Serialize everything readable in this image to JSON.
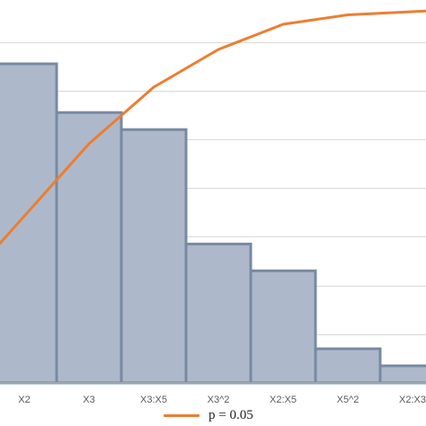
{
  "chart_data": {
    "type": "bar",
    "categories": [
      "X2",
      "X3",
      "X3:X5",
      "X3^2",
      "X2:X5",
      "X5^2",
      "X2:X3"
    ],
    "series": [
      {
        "name": "",
        "kind": "bar",
        "values": [
          0.131,
          0.111,
          0.104,
          0.057,
          0.046,
          0.014,
          0.007
        ]
      },
      {
        "name": "p = 0.05",
        "kind": "line",
        "values": [
          0.53,
          0.76,
          0.94,
          1.06,
          1.14,
          1.17,
          1.18
        ]
      }
    ],
    "ylim": [
      0,
      0.155
    ],
    "y2lim": [
      0,
      1.2
    ],
    "grid": true,
    "legend": "bottom-center",
    "colors": {
      "bar_fill": "#adb9ca",
      "bar_edge": "#7889a3",
      "line": "#ed7d31",
      "grid": "#d9d9d9",
      "tick_label": "#595959"
    }
  }
}
